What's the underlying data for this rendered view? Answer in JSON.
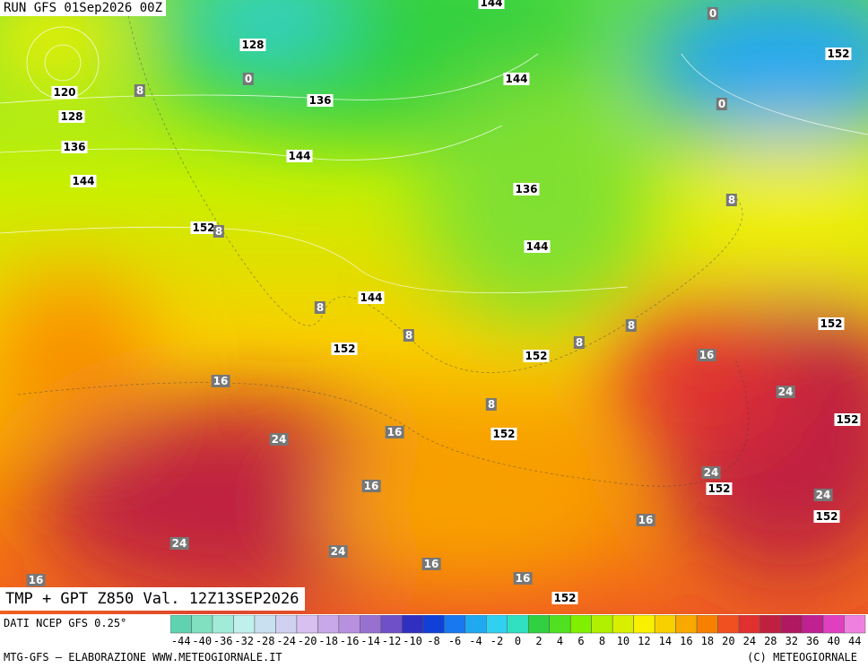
{
  "header": {
    "run": "RUN GFS 01Sep2026 00Z",
    "product": "TMP + GPT Z850 Val. 12Z13SEP2026"
  },
  "map_labels": {
    "geopotential": [
      "144",
      "128",
      "120",
      "128",
      "136",
      "136",
      "144",
      "144",
      "152",
      "144",
      "136",
      "144",
      "144",
      "152",
      "152",
      "152",
      "152",
      "152",
      "152",
      "152",
      "152",
      "152"
    ],
    "temperature": [
      "0",
      "0",
      "0",
      "8",
      "8",
      "8",
      "8",
      "8",
      "8",
      "8",
      "8",
      "16",
      "16",
      "16",
      "16",
      "16",
      "16",
      "16",
      "16",
      "24",
      "24",
      "24",
      "24",
      "24",
      "24"
    ]
  },
  "colorbar": {
    "ticks": [
      "-44",
      "-40",
      "-36",
      "-32",
      "-28",
      "-24",
      "-20",
      "-18",
      "-16",
      "-14",
      "-12",
      "-10",
      "-8",
      "-6",
      "-4",
      "-2",
      "0",
      "2",
      "4",
      "6",
      "8",
      "10",
      "12",
      "14",
      "16",
      "18",
      "20",
      "24",
      "28",
      "32",
      "36",
      "40",
      "44"
    ],
    "colors": [
      "#5fd3b0",
      "#80e0c0",
      "#a0ecd8",
      "#c0f0ec",
      "#c8e0f0",
      "#d0d0f0",
      "#d8c0f0",
      "#c8a8e8",
      "#b890e0",
      "#9870d0",
      "#7050c8",
      "#3030c0",
      "#1040d8",
      "#1878f0",
      "#20a8f0",
      "#30d0f0",
      "#30e0c0",
      "#30d040",
      "#50e020",
      "#80f000",
      "#b0f000",
      "#d8f000",
      "#f8f000",
      "#f8d000",
      "#f8a800",
      "#f88000",
      "#f05020",
      "#e03030",
      "#c02040",
      "#b01860",
      "#c02090",
      "#e040c0",
      "#f080e0"
    ]
  },
  "footer": {
    "source": "DATI NCEP GFS 0.25°",
    "credit": "MTG-GFS — ELABORAZIONE WWW.METEOGIORNALE.IT",
    "copyright": "(C) METEOGIORNALE"
  }
}
